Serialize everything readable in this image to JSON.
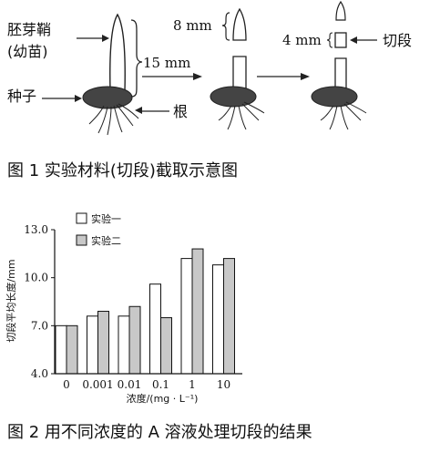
{
  "figure1": {
    "labels": {
      "coleoptile": "胚芽鞘",
      "seedling": "(幼苗)",
      "seed": "种子",
      "root": "根",
      "len15": "15 mm",
      "len8": "8 mm",
      "len4": "4 mm",
      "segment": "切段"
    },
    "caption": "图 1   实验材料(切段)截取示意图"
  },
  "figure2": {
    "caption": "图 2   用不同浓度的 A 溶液处理切段的结果"
  },
  "chart_data": {
    "type": "bar",
    "categories": [
      "0",
      "0.001",
      "0.01",
      "0.1",
      "1",
      "10"
    ],
    "series": [
      {
        "name": "实验一",
        "color": "#ffffff",
        "values": [
          7.0,
          7.6,
          7.6,
          9.6,
          11.2,
          10.8
        ]
      },
      {
        "name": "实验二",
        "color": "#c8c8c8",
        "values": [
          7.0,
          7.9,
          8.2,
          7.5,
          11.8,
          11.2
        ]
      }
    ],
    "yticks": [
      "4.0",
      "7.0",
      "10.0",
      "13.0"
    ],
    "ylim": [
      4.0,
      13.0
    ],
    "xlabel": "浓度/(mg · L⁻¹)",
    "ylabel": "切段平均长度/mm",
    "legend_position": "top-left"
  }
}
